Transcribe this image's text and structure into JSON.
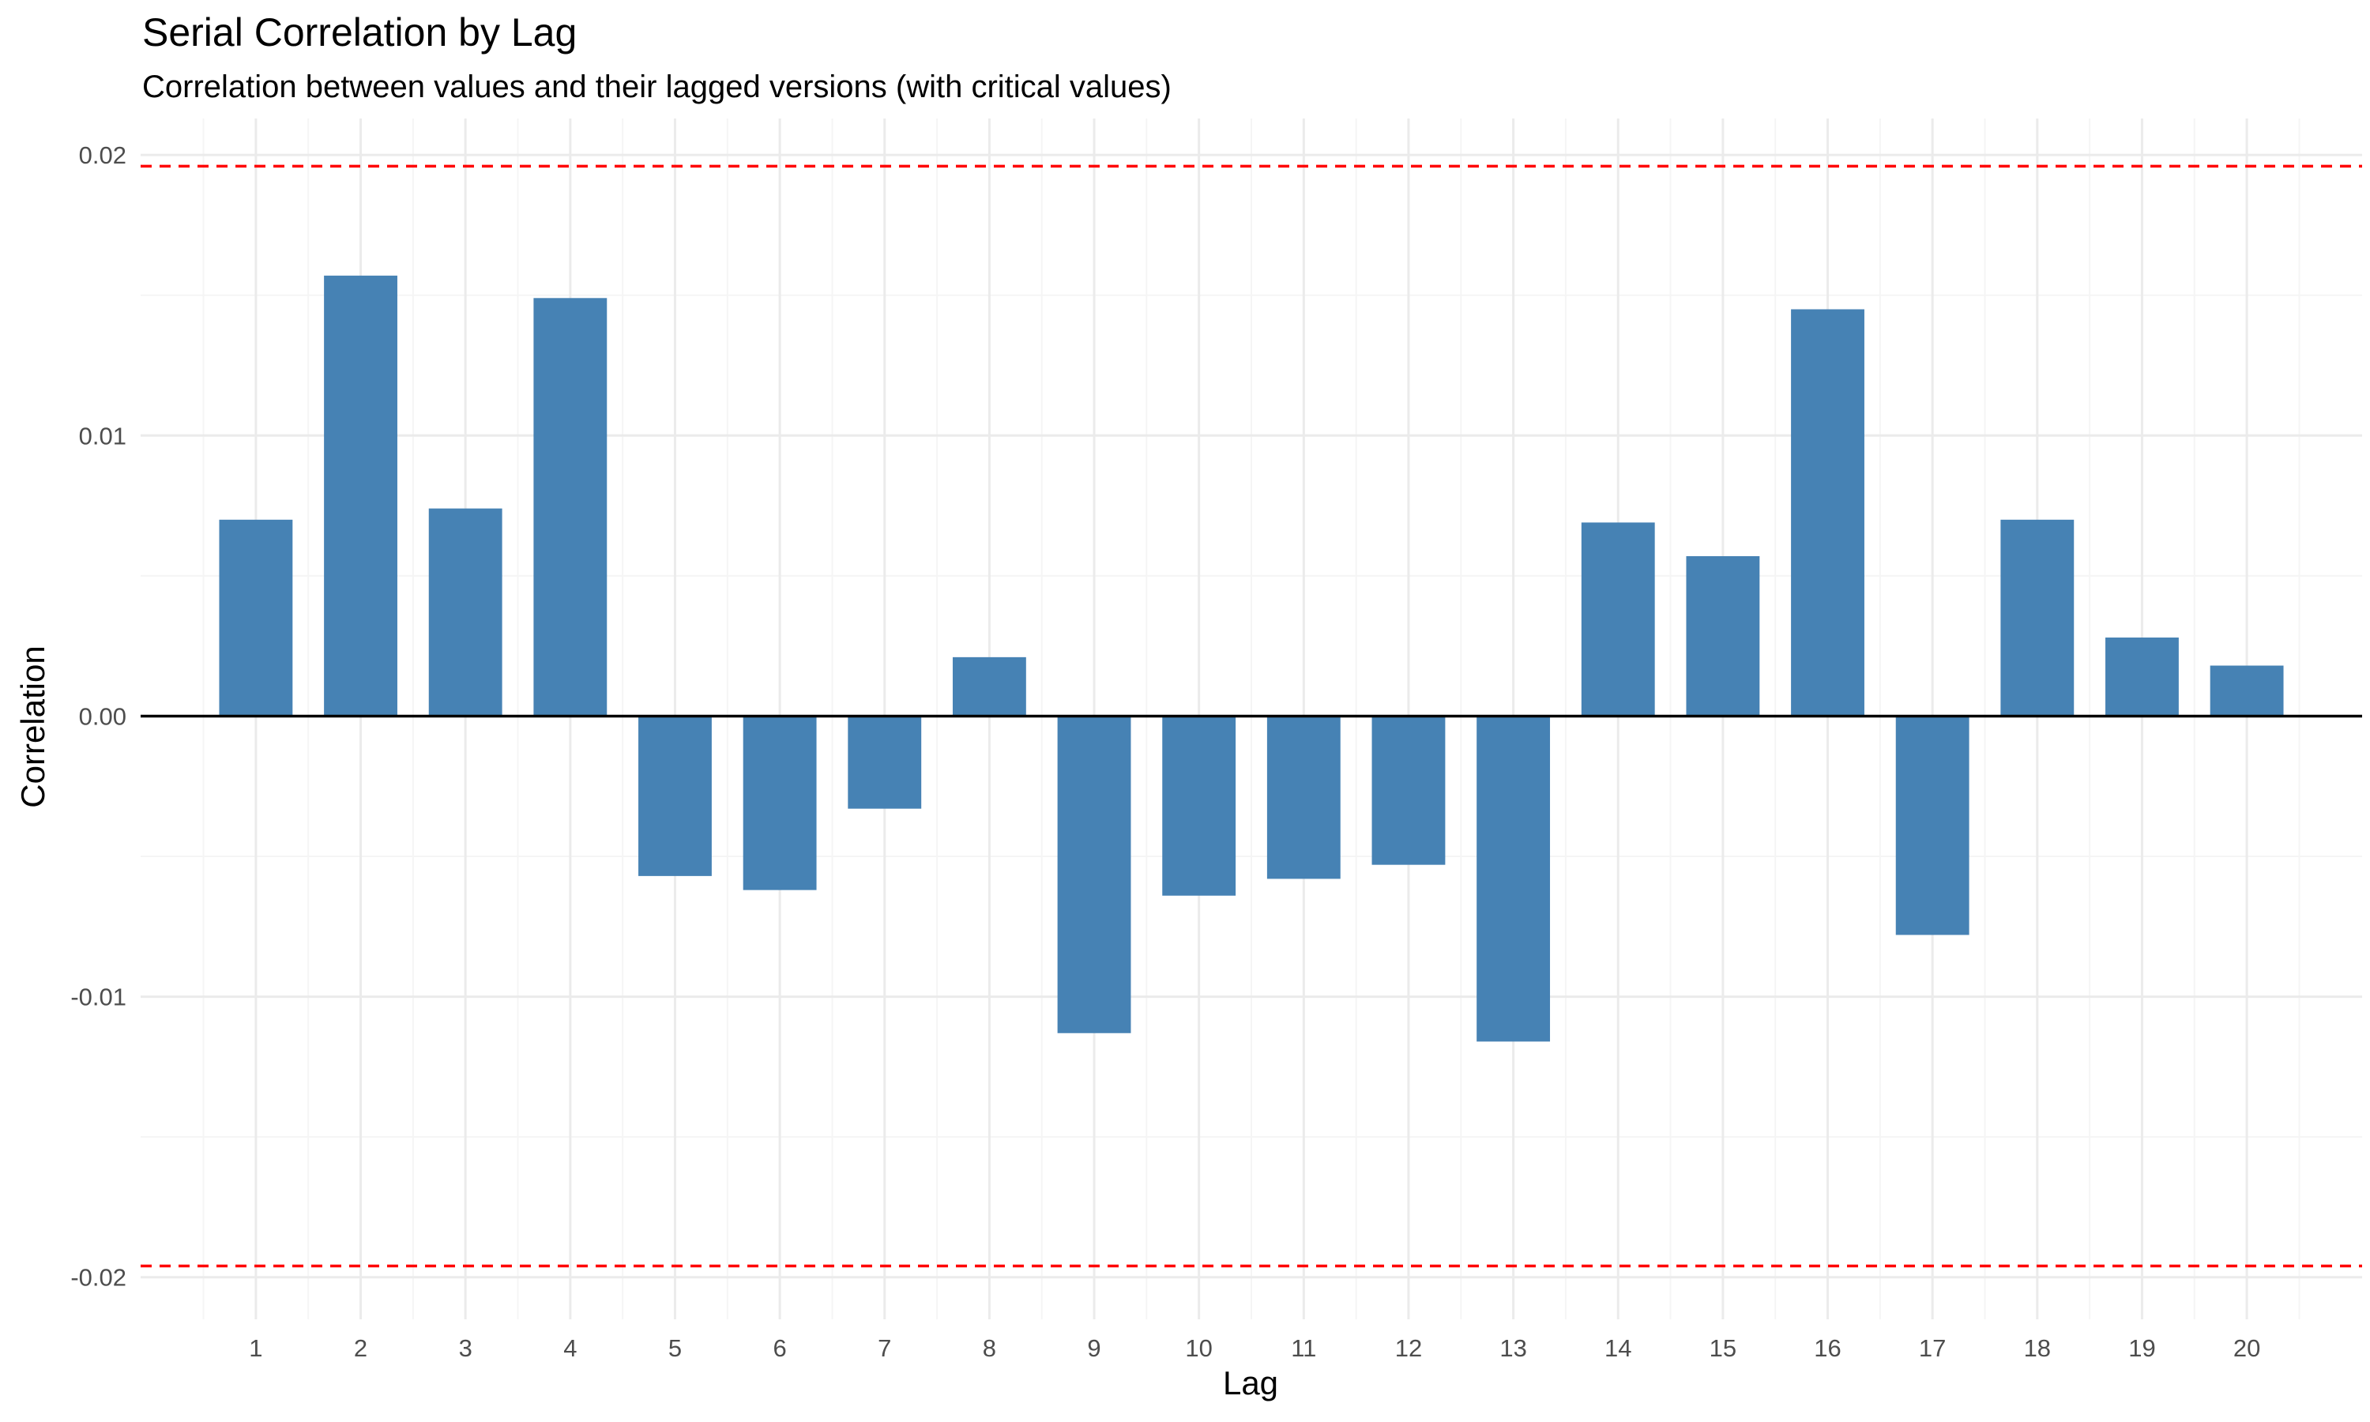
{
  "chart_data": {
    "type": "bar",
    "title": "Serial Correlation by Lag",
    "subtitle": "Correlation between values and their lagged versions (with critical values)",
    "xlabel": "Lag",
    "ylabel": "Correlation",
    "categories": [
      "1",
      "2",
      "3",
      "4",
      "5",
      "6",
      "7",
      "8",
      "9",
      "10",
      "11",
      "12",
      "13",
      "14",
      "15",
      "16",
      "17",
      "18",
      "19",
      "20"
    ],
    "values": [
      0.007,
      0.0157,
      0.0074,
      0.0149,
      -0.0057,
      -0.0062,
      -0.0033,
      0.0021,
      -0.0113,
      -0.0064,
      -0.0058,
      -0.0053,
      -0.0116,
      0.0069,
      0.0057,
      0.0145,
      -0.0078,
      0.007,
      0.0028,
      0.0018
    ],
    "ylim": [
      -0.0215,
      0.0213
    ],
    "yticks": [
      -0.02,
      -0.01,
      0.0,
      0.01,
      0.02
    ],
    "ytick_labels": [
      "-0.02",
      "-0.01",
      "0.00",
      "0.01",
      "0.02"
    ],
    "critical_values": [
      0.0196,
      -0.0196
    ],
    "grid": true,
    "legend": "none",
    "colors": {
      "bar": "#4682B4",
      "critical_line": "#FF0000",
      "zero_line": "#000000",
      "grid_major": "#EBEBEB",
      "grid_minor": "#F5F5F5"
    }
  }
}
